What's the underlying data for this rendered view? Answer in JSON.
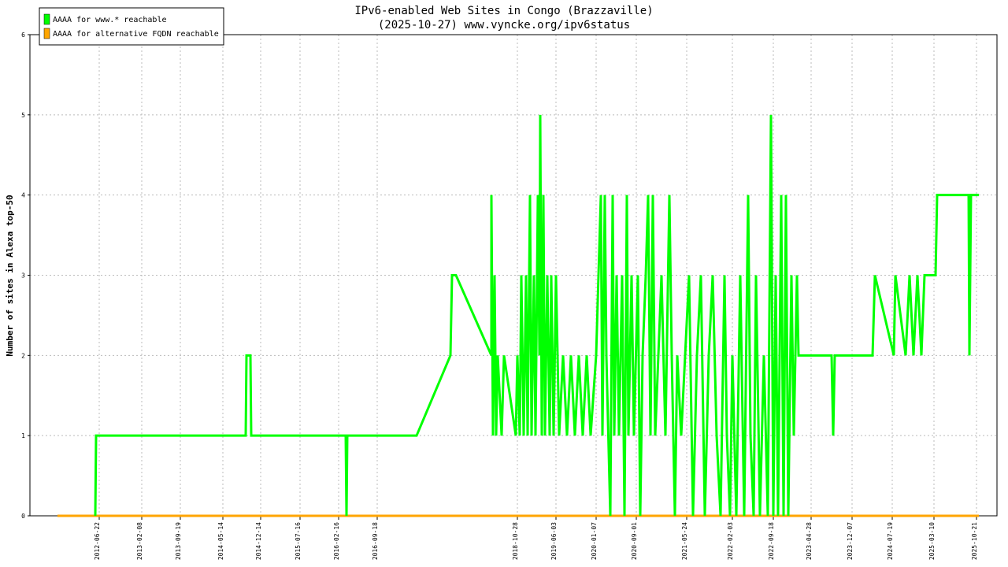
{
  "chart_data": {
    "type": "line",
    "title": "IPv6-enabled Web Sites in Congo (Brazzaville)",
    "subtitle": "(2025-10-27) www.vyncke.org/ipv6status",
    "y_label": "Number of sites in Alexa top-50",
    "grid": true,
    "legend": "top-left",
    "xlim": [
      38,
      1266
    ],
    "ylim": [
      0,
      6
    ],
    "yticks": [
      0,
      1,
      2,
      3,
      4,
      5,
      6
    ],
    "xticks": [
      {
        "value": 126,
        "label": "2012-06-22"
      },
      {
        "value": 180,
        "label": "2013-02-08"
      },
      {
        "value": 229,
        "label": "2013-09-19"
      },
      {
        "value": 283,
        "label": "2014-05-14"
      },
      {
        "value": 331,
        "label": "2014-12-14"
      },
      {
        "value": 381,
        "label": "2015-07-16"
      },
      {
        "value": 430,
        "label": "2016-02-16"
      },
      {
        "value": 479,
        "label": "2016-09-18"
      },
      {
        "value": 657,
        "label": "2018-10-28"
      },
      {
        "value": 706,
        "label": "2019-06-03"
      },
      {
        "value": 757,
        "label": "2020-01-07"
      },
      {
        "value": 808,
        "label": "2020-09-01"
      },
      {
        "value": 872,
        "label": "2021-05-24"
      },
      {
        "value": 930,
        "label": "2022-02-03"
      },
      {
        "value": 982,
        "label": "2022-09-18"
      },
      {
        "value": 1030,
        "label": "2023-04-28"
      },
      {
        "value": 1082,
        "label": "2023-12-07"
      },
      {
        "value": 1133,
        "label": "2024-07-19"
      },
      {
        "value": 1186,
        "label": "2025-03-10"
      },
      {
        "value": 1240,
        "label": "2025-10-21"
      }
    ],
    "series": [
      {
        "name": "AAAA for www.* reachable",
        "color": "#00ff00",
        "x": [
          121,
          122,
          312,
          313,
          318,
          319,
          439,
          440,
          441,
          529,
          572,
          574,
          579,
          624,
          624,
          626,
          628,
          630,
          632,
          637,
          640,
          655,
          657,
          660,
          662,
          665,
          668,
          670,
          673,
          675,
          678,
          680,
          683,
          685,
          686,
          688,
          690,
          692,
          695,
          698,
          700,
          703,
          706,
          710,
          715,
          720,
          725,
          730,
          735,
          740,
          745,
          750,
          757,
          760,
          763,
          765,
          768,
          770,
          775,
          778,
          780,
          783,
          786,
          790,
          793,
          796,
          798,
          802,
          805,
          810,
          813,
          816,
          820,
          823,
          826,
          829,
          832,
          836,
          840,
          845,
          850,
          853,
          857,
          860,
          865,
          870,
          875,
          880,
          885,
          890,
          895,
          900,
          905,
          910,
          915,
          920,
          923,
          927,
          930,
          935,
          940,
          945,
          950,
          953,
          957,
          960,
          965,
          970,
          975,
          979,
          982,
          985,
          988,
          992,
          995,
          998,
          1001,
          1005,
          1008,
          1012,
          1014,
          1056,
          1058,
          1060,
          1108,
          1111,
          1135,
          1137,
          1150,
          1155,
          1160,
          1165,
          1170,
          1174,
          1188,
          1190,
          1230,
          1231,
          1233,
          1243
        ],
        "values": [
          0,
          1,
          1,
          2,
          2,
          1,
          1,
          0,
          1,
          1,
          2,
          3,
          3,
          2,
          4,
          1,
          3,
          1,
          2,
          1,
          2,
          1,
          2,
          1,
          3,
          1,
          3,
          1,
          4,
          1,
          3,
          1,
          4,
          2,
          5,
          1,
          4,
          1,
          3,
          1,
          3,
          1,
          3,
          1,
          2,
          1,
          2,
          1,
          2,
          1,
          2,
          1,
          2,
          3,
          4,
          1,
          4,
          2,
          0,
          4,
          1,
          3,
          1,
          3,
          0,
          4,
          1,
          3,
          1,
          3,
          0,
          2,
          3,
          4,
          1,
          4,
          1,
          2,
          3,
          1,
          4,
          2,
          0,
          2,
          1,
          2,
          3,
          0,
          2,
          3,
          0,
          2,
          3,
          1,
          0,
          3,
          1,
          0,
          2,
          0,
          3,
          0,
          4,
          1,
          0,
          3,
          0,
          2,
          0,
          5,
          0,
          3,
          0,
          4,
          0,
          4,
          0,
          3,
          1,
          3,
          2,
          2,
          1,
          2,
          2,
          3,
          2,
          3,
          2,
          3,
          2,
          3,
          2,
          3,
          3,
          4,
          4,
          2,
          4,
          4
        ]
      },
      {
        "name": "AAAA for alternative FQDN reachable",
        "color": "#ffa500",
        "x": [
          73,
          1243
        ],
        "values": [
          0,
          0
        ]
      }
    ]
  }
}
